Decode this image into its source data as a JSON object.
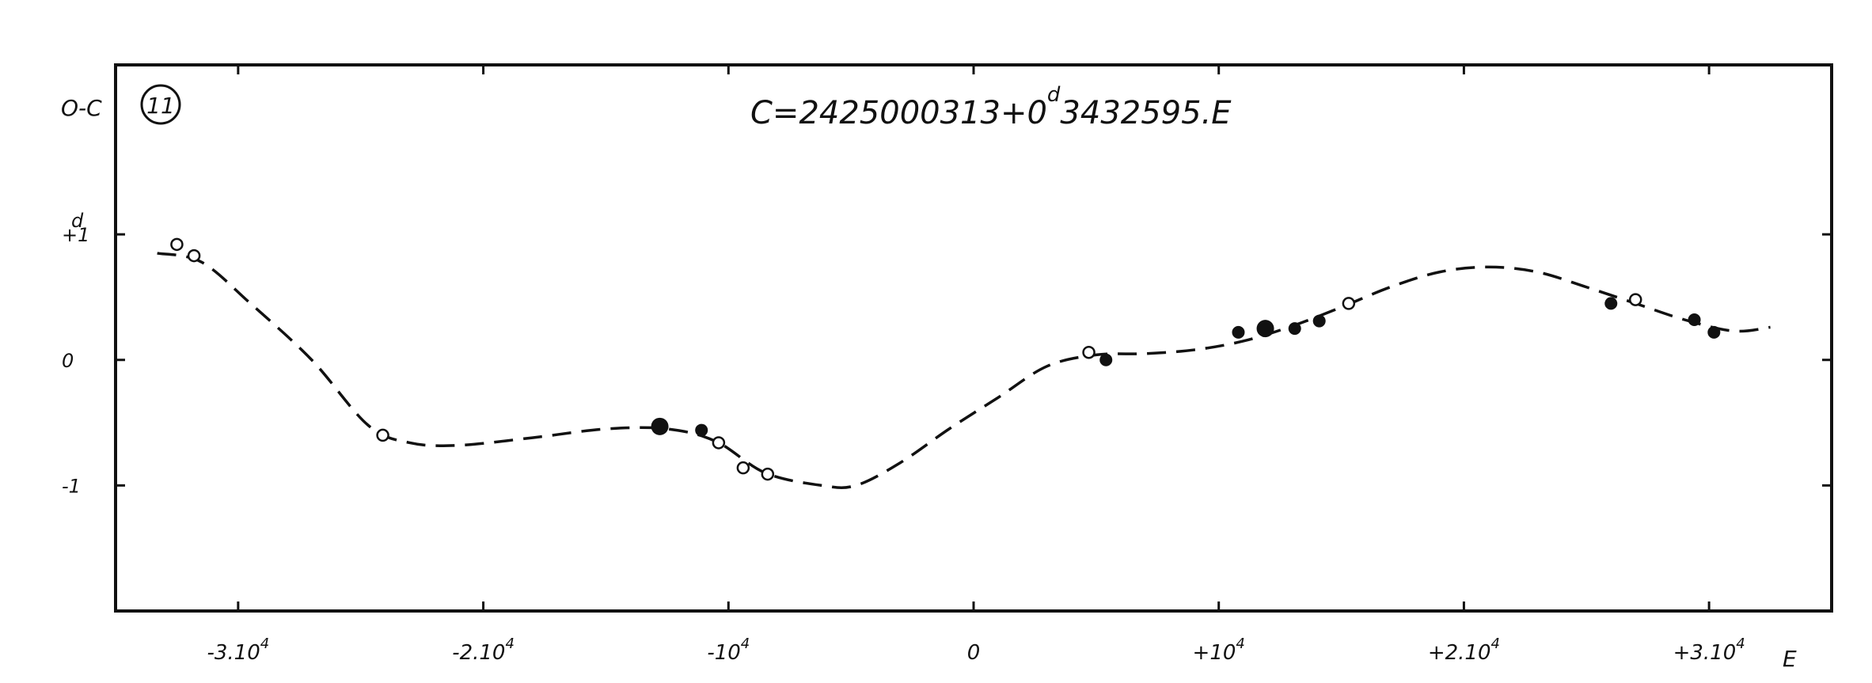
{
  "chart_data": {
    "type": "scatter",
    "figure_number": "11",
    "title": "C=2425000.313+0.3432595.E",
    "title_main": "C=2425000",
    "title_day_frac": "313+0",
    "title_day_mark": "d",
    "title_period": "3432595.E",
    "ylabel": "O-C",
    "yunit": "d",
    "xlabel": "E",
    "xlim": [
      -35000,
      35000
    ],
    "ylim": [
      -2.0,
      2.35
    ],
    "x_ticks": [
      {
        "value": -30000,
        "label": "-3.10",
        "exp": "4"
      },
      {
        "value": -20000,
        "label": "-2.10",
        "exp": "4"
      },
      {
        "value": -10000,
        "label": "-10",
        "exp": "4"
      },
      {
        "value": 0,
        "label": "0",
        "exp": ""
      },
      {
        "value": 10000,
        "label": "+10",
        "exp": "4"
      },
      {
        "value": 20000,
        "label": "+2.10",
        "exp": "4"
      },
      {
        "value": 30000,
        "label": "+3.10",
        "exp": "4"
      }
    ],
    "y_ticks": [
      {
        "value": 1,
        "label": "+1"
      },
      {
        "value": 0,
        "label": "0"
      },
      {
        "value": -1,
        "label": "-1"
      }
    ],
    "grid": false,
    "legend": "none",
    "series": [
      {
        "marker": "open-circle",
        "points": [
          {
            "x": -32500,
            "y": 0.92
          },
          {
            "x": -31800,
            "y": 0.83
          },
          {
            "x": -24100,
            "y": -0.6
          },
          {
            "x": -10400,
            "y": -0.66
          },
          {
            "x": -9400,
            "y": -0.86
          },
          {
            "x": -8400,
            "y": -0.91
          },
          {
            "x": 4700,
            "y": 0.06
          },
          {
            "x": 15300,
            "y": 0.45
          },
          {
            "x": 27000,
            "y": 0.48
          }
        ]
      },
      {
        "marker": "filled-circle",
        "points": [
          {
            "x": -12800,
            "y": -0.53,
            "size": "large"
          },
          {
            "x": -11100,
            "y": -0.56,
            "size": "medium"
          },
          {
            "x": 5400,
            "y": 0.0,
            "size": "medium"
          },
          {
            "x": 10800,
            "y": 0.22,
            "size": "medium"
          },
          {
            "x": 11900,
            "y": 0.25,
            "size": "large"
          },
          {
            "x": 13100,
            "y": 0.25,
            "size": "medium"
          },
          {
            "x": 14100,
            "y": 0.31,
            "size": "medium"
          },
          {
            "x": 26000,
            "y": 0.45,
            "size": "medium"
          },
          {
            "x": 29400,
            "y": 0.32,
            "size": "medium"
          },
          {
            "x": 30200,
            "y": 0.22,
            "size": "medium"
          }
        ]
      },
      {
        "marker": "dashed-line",
        "points": [
          {
            "x": -33300,
            "y": 0.85
          },
          {
            "x": -31500,
            "y": 0.78
          },
          {
            "x": -29500,
            "y": 0.45
          },
          {
            "x": -27000,
            "y": 0.0
          },
          {
            "x": -24700,
            "y": -0.52
          },
          {
            "x": -23000,
            "y": -0.66
          },
          {
            "x": -21000,
            "y": -0.68
          },
          {
            "x": -18000,
            "y": -0.62
          },
          {
            "x": -15000,
            "y": -0.55
          },
          {
            "x": -12500,
            "y": -0.55
          },
          {
            "x": -10500,
            "y": -0.65
          },
          {
            "x": -8500,
            "y": -0.9
          },
          {
            "x": -6200,
            "y": -1.0
          },
          {
            "x": -4800,
            "y": -1.0
          },
          {
            "x": -3000,
            "y": -0.82
          },
          {
            "x": -1000,
            "y": -0.55
          },
          {
            "x": 1000,
            "y": -0.3
          },
          {
            "x": 3000,
            "y": -0.05
          },
          {
            "x": 5000,
            "y": 0.04
          },
          {
            "x": 7000,
            "y": 0.05
          },
          {
            "x": 9000,
            "y": 0.08
          },
          {
            "x": 11000,
            "y": 0.15
          },
          {
            "x": 13000,
            "y": 0.27
          },
          {
            "x": 15000,
            "y": 0.42
          },
          {
            "x": 17000,
            "y": 0.58
          },
          {
            "x": 19000,
            "y": 0.7
          },
          {
            "x": 21000,
            "y": 0.74
          },
          {
            "x": 23000,
            "y": 0.7
          },
          {
            "x": 25000,
            "y": 0.58
          },
          {
            "x": 27000,
            "y": 0.45
          },
          {
            "x": 29000,
            "y": 0.32
          },
          {
            "x": 31000,
            "y": 0.23
          },
          {
            "x": 32500,
            "y": 0.26
          }
        ]
      }
    ]
  }
}
